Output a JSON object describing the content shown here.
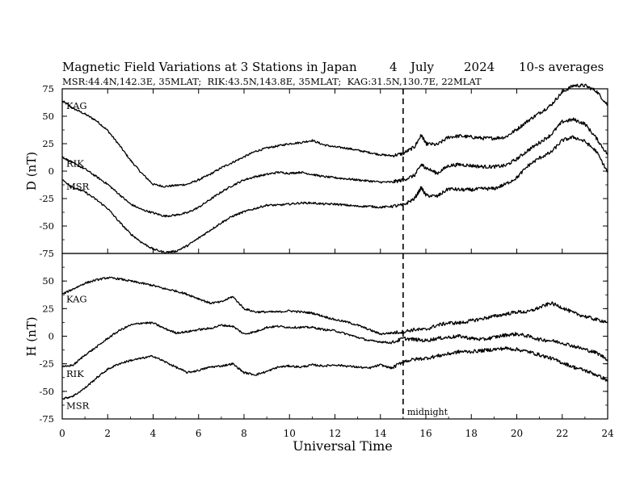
{
  "header": {
    "title": "Magnetic Field Variations at 3 Stations in Japan",
    "day": "4",
    "month": "July",
    "year": "2024",
    "averaging": "10-s averages",
    "stations_line": "MSR:44.4N,142.3E, 35MLAT;  RIK:43.5N,143.8E, 35MLAT;  KAG:31.5N,130.7E, 22MLAT"
  },
  "chart_data": [
    {
      "type": "line",
      "ylabel": "D (nT)",
      "xlabel": "",
      "xlim": [
        0,
        24
      ],
      "ylim": [
        -75,
        75
      ],
      "yticks": [
        75,
        50,
        25,
        0,
        -25,
        -50,
        -75
      ],
      "ytick_labels": [
        "75",
        "50",
        "25",
        "0",
        "-25",
        "-50",
        "-75"
      ],
      "x": [
        0,
        0.5,
        1,
        1.5,
        2,
        2.5,
        3,
        3.5,
        4,
        4.5,
        5,
        5.5,
        6,
        6.5,
        7,
        7.5,
        8,
        8.5,
        9,
        9.5,
        10,
        10.5,
        11,
        11.5,
        12,
        12.5,
        13,
        13.5,
        14,
        14.5,
        15,
        15.5,
        15.8,
        16,
        16.5,
        17,
        17.5,
        18,
        18.5,
        19,
        19.5,
        20,
        20.5,
        21,
        21.5,
        22,
        22.5,
        23,
        23.5,
        24
      ],
      "series": [
        {
          "name": "KAG",
          "values": [
            64,
            57,
            52,
            46,
            37,
            24,
            10,
            -2,
            -12,
            -14,
            -13,
            -12,
            -8,
            -3,
            3,
            8,
            13,
            18,
            21,
            23,
            25,
            26,
            28,
            24,
            22,
            21,
            19,
            17,
            15,
            14,
            16,
            22,
            33,
            25,
            24,
            31,
            32,
            31,
            30,
            30,
            31,
            38,
            46,
            53,
            60,
            72,
            78,
            78,
            73,
            60
          ]
        },
        {
          "name": "RIK",
          "values": [
            13,
            7,
            2,
            -5,
            -12,
            -21,
            -30,
            -35,
            -38,
            -41,
            -40,
            -38,
            -33,
            -26,
            -19,
            -13,
            -8,
            -5,
            -3,
            -1,
            -2,
            -1,
            -3,
            -5,
            -6,
            -7,
            -8,
            -9,
            -10,
            -10,
            -8,
            -4,
            6,
            3,
            -2,
            5,
            6,
            5,
            4,
            4,
            5,
            11,
            19,
            26,
            33,
            45,
            47,
            43,
            30,
            15
          ]
        },
        {
          "name": "MSR",
          "values": [
            -8,
            -15,
            -19,
            -26,
            -34,
            -46,
            -57,
            -65,
            -71,
            -74,
            -73,
            -68,
            -61,
            -54,
            -47,
            -41,
            -37,
            -34,
            -31,
            -31,
            -30,
            -29,
            -29,
            -30,
            -30,
            -31,
            -32,
            -32,
            -33,
            -32,
            -31,
            -25,
            -15,
            -22,
            -23,
            -16,
            -17,
            -17,
            -16,
            -16,
            -12,
            -6,
            5,
            12,
            17,
            28,
            31,
            27,
            18,
            -1
          ]
        }
      ],
      "annotations": []
    },
    {
      "type": "line",
      "ylabel": "H (nT)",
      "xlabel": "Universal Time",
      "xlim": [
        0,
        24
      ],
      "ylim": [
        -75,
        75
      ],
      "yticks": [
        50,
        25,
        0,
        -25,
        -50,
        -75
      ],
      "ytick_labels": [
        "50",
        "25",
        "0",
        "-25",
        "-50",
        "-75"
      ],
      "xticks": [
        0,
        2,
        4,
        6,
        8,
        10,
        12,
        14,
        16,
        18,
        20,
        22,
        24
      ],
      "xtick_labels": [
        "0",
        "2",
        "4",
        "6",
        "8",
        "10",
        "12",
        "14",
        "16",
        "18",
        "20",
        "22",
        "24"
      ],
      "x": [
        0,
        0.5,
        1,
        1.5,
        2,
        2.5,
        3,
        3.5,
        4,
        4.5,
        5,
        5.5,
        6,
        6.5,
        7,
        7.5,
        8,
        8.5,
        9,
        9.5,
        10,
        10.5,
        11,
        11.5,
        12,
        12.5,
        13,
        13.5,
        14,
        14.5,
        15,
        15.5,
        16,
        16.5,
        17,
        17.5,
        18,
        18.5,
        19,
        19.5,
        20,
        20.5,
        21,
        21.5,
        22,
        22.5,
        23,
        23.5,
        24
      ],
      "series": [
        {
          "name": "KAG",
          "values": [
            38,
            43,
            48,
            51,
            53,
            52,
            50,
            48,
            46,
            43,
            41,
            38,
            34,
            30,
            31,
            36,
            25,
            22,
            22,
            22,
            23,
            22,
            21,
            18,
            15,
            13,
            10,
            6,
            2,
            3,
            4,
            6,
            6,
            10,
            12,
            12,
            14,
            16,
            18,
            20,
            22,
            22,
            26,
            30,
            26,
            21,
            18,
            15,
            13
          ]
        },
        {
          "name": "RIK",
          "values": [
            -28,
            -26,
            -17,
            -10,
            -2,
            5,
            10,
            12,
            12,
            7,
            3,
            4,
            6,
            7,
            10,
            9,
            2,
            4,
            8,
            9,
            8,
            8,
            8,
            6,
            5,
            2,
            -1,
            -4,
            -5,
            -6,
            -2,
            -3,
            -4,
            -2,
            -1,
            0,
            -2,
            -3,
            -1,
            1,
            2,
            0,
            -3,
            -4,
            -6,
            -9,
            -12,
            -15,
            -21
          ]
        },
        {
          "name": "MSR",
          "values": [
            -57,
            -54,
            -47,
            -38,
            -30,
            -25,
            -22,
            -20,
            -18,
            -23,
            -28,
            -33,
            -31,
            -28,
            -27,
            -25,
            -33,
            -35,
            -32,
            -28,
            -27,
            -28,
            -26,
            -27,
            -26,
            -27,
            -28,
            -29,
            -26,
            -29,
            -23,
            -21,
            -20,
            -18,
            -16,
            -14,
            -14,
            -13,
            -12,
            -11,
            -12,
            -14,
            -17,
            -20,
            -24,
            -28,
            -31,
            -35,
            -40
          ]
        }
      ],
      "annotations": [
        "midnight"
      ]
    }
  ],
  "midnight": {
    "label": "midnight",
    "x": 15
  }
}
